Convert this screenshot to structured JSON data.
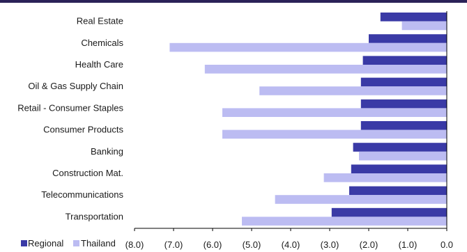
{
  "chart_data": {
    "type": "bar",
    "orientation": "horizontal",
    "categories": [
      "Real Estate",
      "Chemicals",
      "Health Care",
      "Oil & Gas Supply Chain",
      "Retail - Consumer Staples",
      "Consumer Products",
      "Banking",
      "Construction Mat.",
      "Telecommunications",
      "Transportation"
    ],
    "series": [
      {
        "name": "Regional",
        "color": "#3a3aa6",
        "values": [
          -1.7,
          -2.0,
          -2.15,
          -2.2,
          -2.2,
          -2.2,
          -2.4,
          -2.45,
          -2.5,
          -2.95
        ]
      },
      {
        "name": "Thailand",
        "color": "#bcbcf2",
        "values": [
          -1.15,
          -7.1,
          -6.2,
          -4.8,
          -5.75,
          -5.75,
          -2.25,
          -3.15,
          -4.4,
          -5.25
        ]
      }
    ],
    "xlim": [
      -8.0,
      0.0
    ],
    "x_ticks": [
      "(8.0)",
      "(7.0)",
      "(6.0)",
      "(5.0)",
      "(4.0)",
      "(3.0)",
      "(2.0)",
      "(1.0)",
      "0.0"
    ],
    "legend_position": "bottom-left",
    "grid": false
  }
}
